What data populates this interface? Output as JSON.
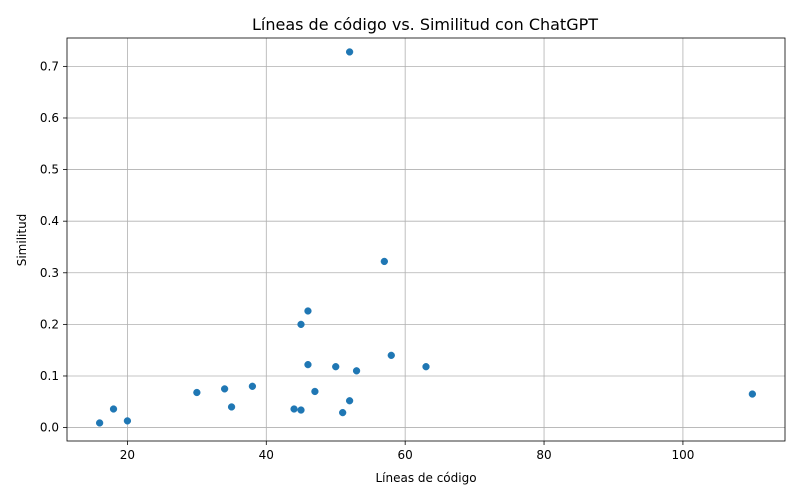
{
  "chart_data": {
    "type": "scatter",
    "title": "Líneas de código vs. Similitud con ChatGPT",
    "xlabel": "Líneas de código",
    "ylabel": "Similitud",
    "xlim": [
      11.3,
      114.7
    ],
    "ylim": [
      -0.026,
      0.755
    ],
    "xticks": [
      20,
      40,
      60,
      80,
      100
    ],
    "yticks": [
      0.0,
      0.1,
      0.2,
      0.3,
      0.4,
      0.5,
      0.6,
      0.7
    ],
    "xtick_labels": [
      "20",
      "40",
      "60",
      "80",
      "100"
    ],
    "ytick_labels": [
      "0.0",
      "0.1",
      "0.2",
      "0.3",
      "0.4",
      "0.5",
      "0.6",
      "0.7"
    ],
    "grid": true,
    "color": "#1f77b4",
    "points": [
      {
        "x": 52,
        "y": 0.728
      },
      {
        "x": 57,
        "y": 0.322
      },
      {
        "x": 46,
        "y": 0.226
      },
      {
        "x": 45,
        "y": 0.2
      },
      {
        "x": 58,
        "y": 0.14
      },
      {
        "x": 46,
        "y": 0.122
      },
      {
        "x": 50,
        "y": 0.118
      },
      {
        "x": 63,
        "y": 0.118
      },
      {
        "x": 53,
        "y": 0.11
      },
      {
        "x": 38,
        "y": 0.08
      },
      {
        "x": 34,
        "y": 0.075
      },
      {
        "x": 47,
        "y": 0.07
      },
      {
        "x": 30,
        "y": 0.068
      },
      {
        "x": 110,
        "y": 0.065
      },
      {
        "x": 52,
        "y": 0.052
      },
      {
        "x": 35,
        "y": 0.04
      },
      {
        "x": 18,
        "y": 0.036
      },
      {
        "x": 44,
        "y": 0.036
      },
      {
        "x": 45,
        "y": 0.034
      },
      {
        "x": 51,
        "y": 0.029
      },
      {
        "x": 20,
        "y": 0.013
      },
      {
        "x": 16,
        "y": 0.009
      }
    ]
  }
}
